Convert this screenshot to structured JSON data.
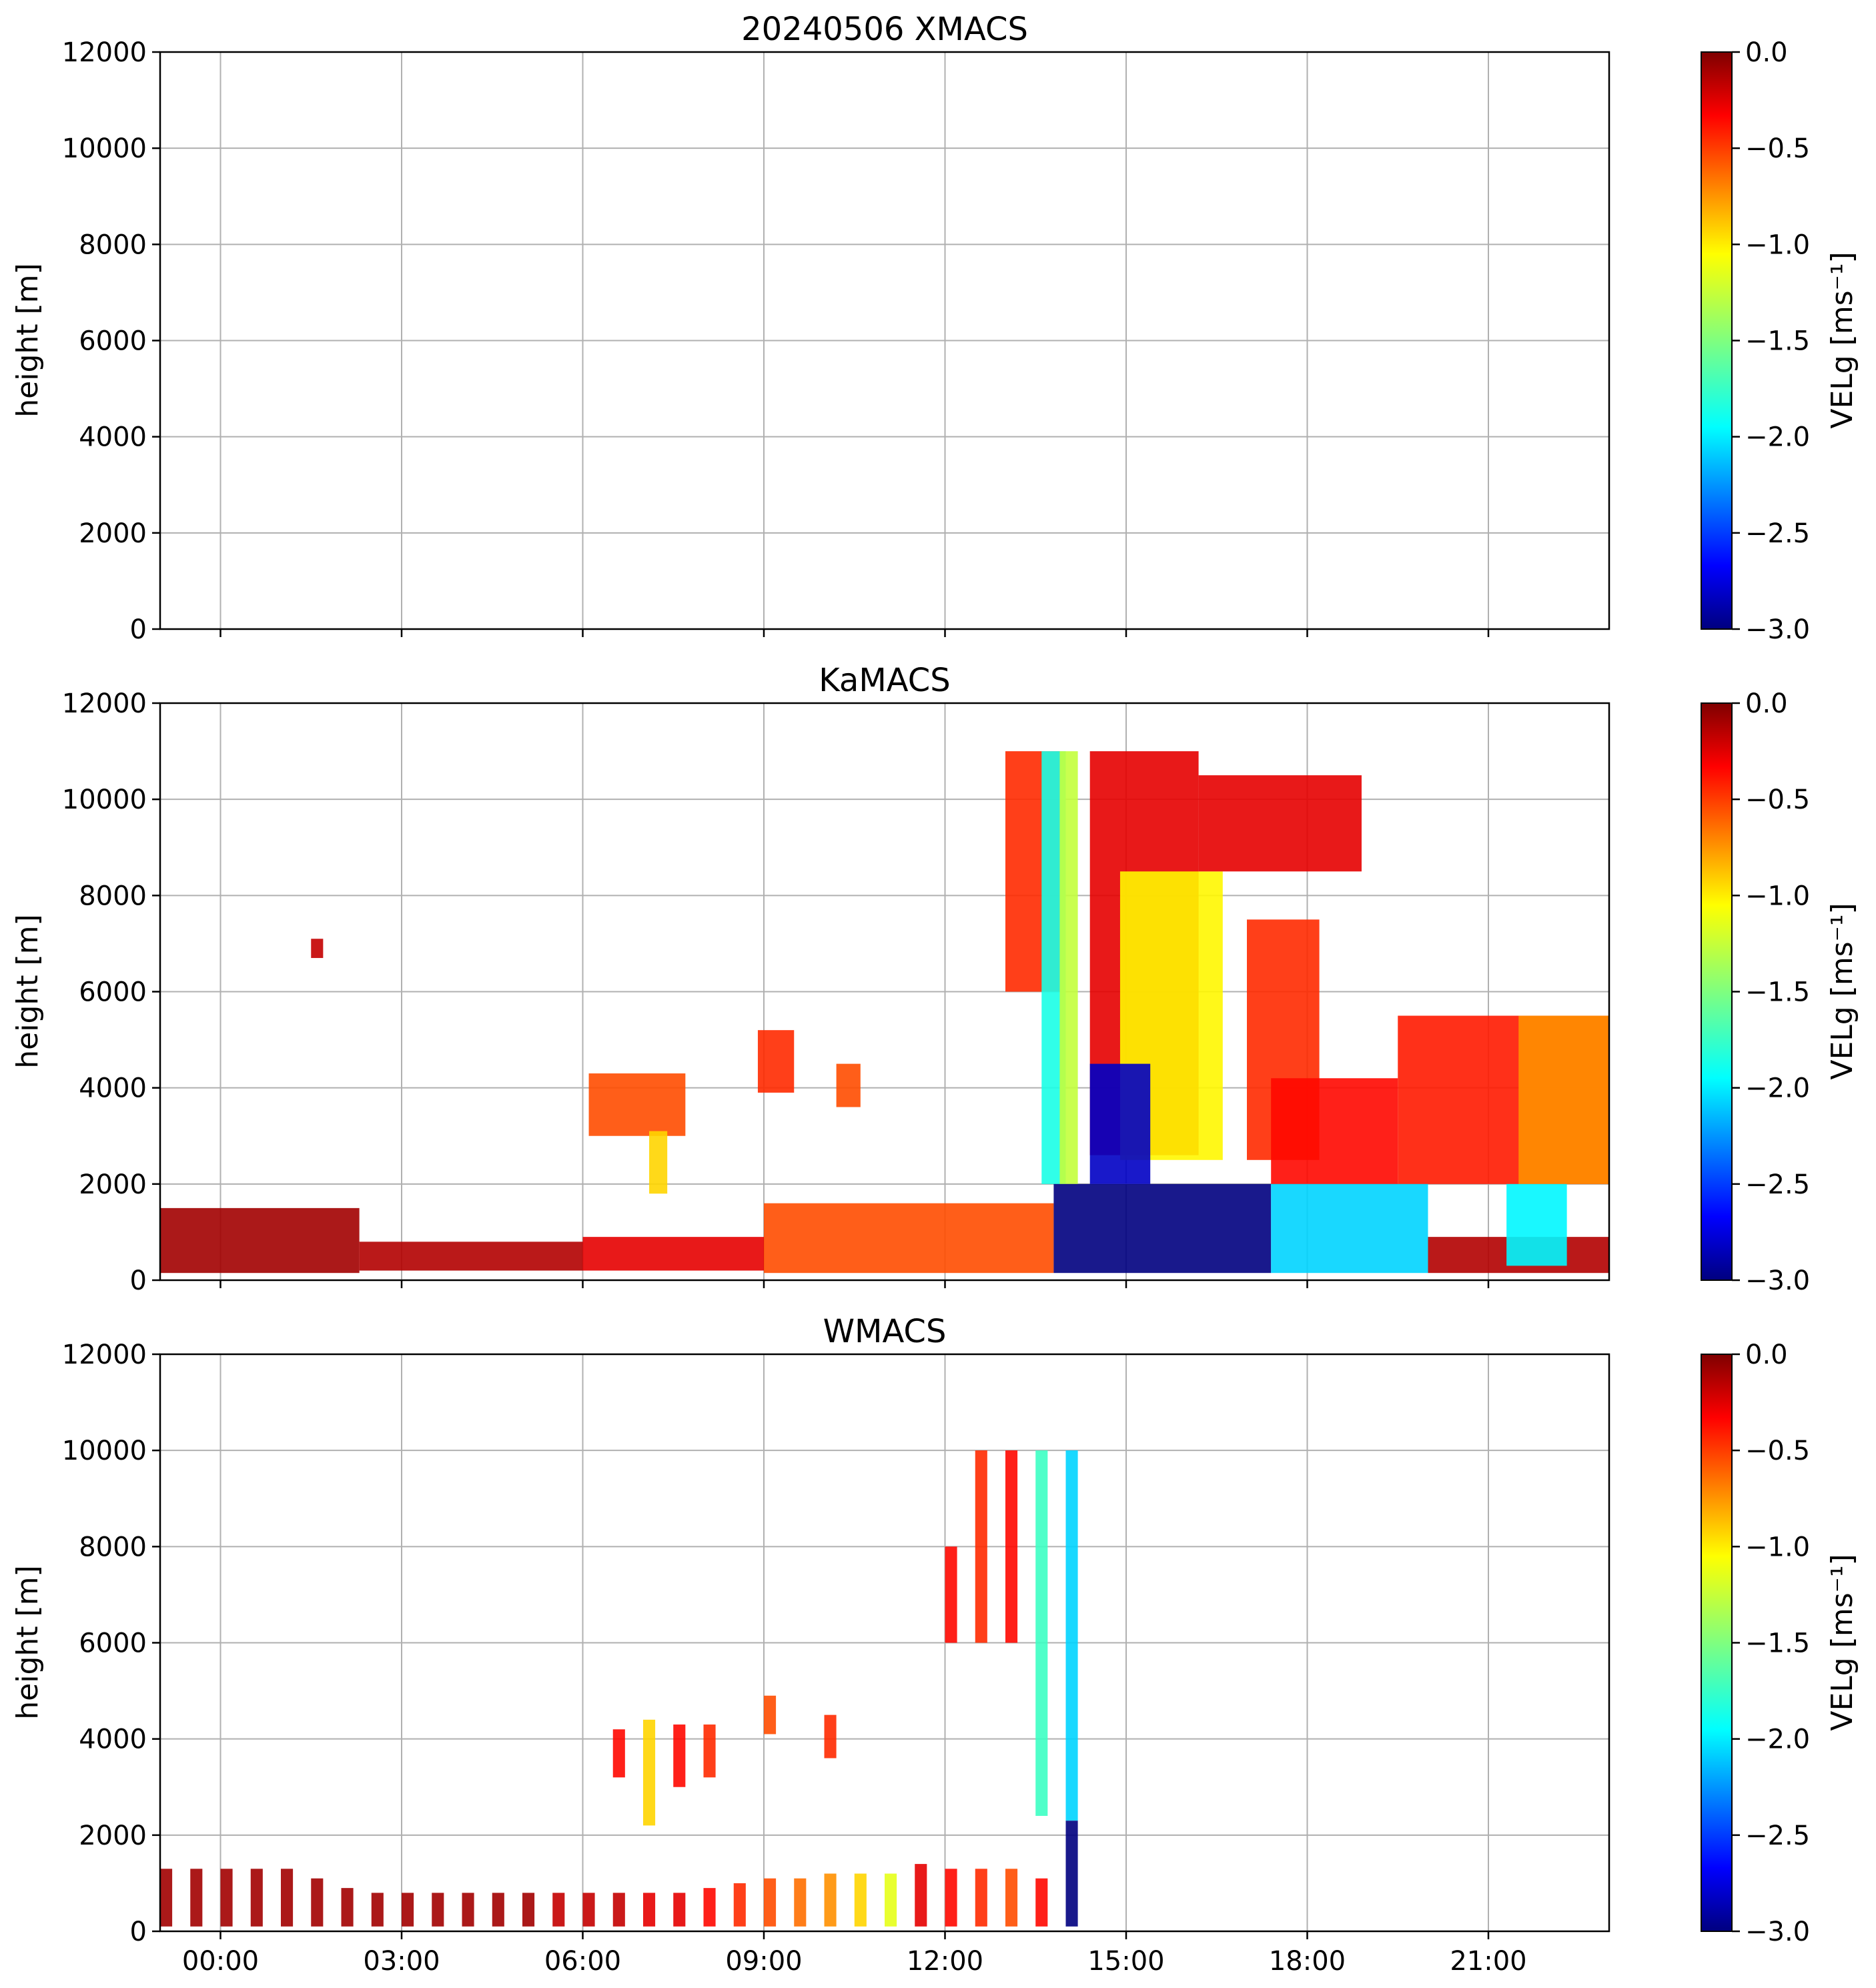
{
  "chart_data": [
    {
      "type": "heatmap",
      "title": "20240506 XMACS",
      "xlabel": "",
      "ylabel": "height [m]",
      "xlim_hours": [
        -1.0,
        23.0
      ],
      "ylim": [
        0,
        12000
      ],
      "yticks": [
        "0",
        "2000",
        "4000",
        "6000",
        "8000",
        "10000",
        "12000"
      ],
      "xticks": [],
      "grid": true,
      "colorbar": {
        "label": "VELg [ms⁻¹]",
        "range": [
          -3.0,
          0.0
        ],
        "ticks": [
          "0.0",
          "−0.5",
          "−1.0",
          "−1.5",
          "−2.0",
          "−2.5",
          "−3.0"
        ],
        "colormap": "jet"
      },
      "regions": []
    },
    {
      "type": "heatmap",
      "title": "KaMACS",
      "xlabel": "",
      "ylabel": "height [m]",
      "xlim_hours": [
        -1.0,
        23.0
      ],
      "ylim": [
        0,
        12000
      ],
      "yticks": [
        "0",
        "2000",
        "4000",
        "6000",
        "8000",
        "10000",
        "12000"
      ],
      "xticks": [],
      "grid": true,
      "colorbar": {
        "label": "VELg [ms⁻¹]",
        "range": [
          -3.0,
          0.0
        ],
        "ticks": [
          "0.0",
          "−0.5",
          "−1.0",
          "−1.5",
          "−2.0",
          "−2.5",
          "−3.0"
        ],
        "colormap": "jet"
      },
      "regions": [
        {
          "t0": -1.0,
          "t1": 2.3,
          "h0": 150,
          "h1": 1500,
          "v": -0.1
        },
        {
          "t0": 2.3,
          "t1": 6.0,
          "h0": 200,
          "h1": 800,
          "v": -0.15
        },
        {
          "t0": 6.0,
          "t1": 9.0,
          "h0": 200,
          "h1": 900,
          "v": -0.3
        },
        {
          "t0": 9.0,
          "t1": 13.8,
          "h0": 150,
          "h1": 1600,
          "v": -0.6
        },
        {
          "t0": 6.1,
          "t1": 7.7,
          "h0": 3000,
          "h1": 4300,
          "v": -0.6
        },
        {
          "t0": 7.1,
          "t1": 7.4,
          "h0": 1800,
          "h1": 3100,
          "v": -1.0
        },
        {
          "t0": 8.9,
          "t1": 9.5,
          "h0": 3900,
          "h1": 5200,
          "v": -0.5
        },
        {
          "t0": 10.2,
          "t1": 10.6,
          "h0": 3600,
          "h1": 4500,
          "v": -0.6
        },
        {
          "t0": 1.5,
          "t1": 1.7,
          "h0": 6700,
          "h1": 7100,
          "v": -0.2
        },
        {
          "t0": 13.0,
          "t1": 13.9,
          "h0": 6000,
          "h1": 11000,
          "v": -0.5
        },
        {
          "t0": 13.6,
          "t1": 14.0,
          "h0": 2000,
          "h1": 11000,
          "v": -1.8
        },
        {
          "t0": 13.9,
          "t1": 14.2,
          "h0": 2000,
          "h1": 11000,
          "v": -1.3
        },
        {
          "t0": 13.8,
          "t1": 17.4,
          "h0": 150,
          "h1": 2000,
          "v": -3.0
        },
        {
          "t0": 14.4,
          "t1": 16.2,
          "h0": 2600,
          "h1": 11000,
          "v": -0.3
        },
        {
          "t0": 14.9,
          "t1": 16.6,
          "h0": 2500,
          "h1": 8500,
          "v": -1.1
        },
        {
          "t0": 14.4,
          "t1": 15.4,
          "h0": 2000,
          "h1": 4500,
          "v": -2.8
        },
        {
          "t0": 16.2,
          "t1": 18.9,
          "h0": 8500,
          "h1": 10500,
          "v": -0.3
        },
        {
          "t0": 17.0,
          "t1": 18.2,
          "h0": 2500,
          "h1": 7500,
          "v": -0.5
        },
        {
          "t0": 17.4,
          "t1": 19.5,
          "h0": 2000,
          "h1": 4200,
          "v": -0.4
        },
        {
          "t0": 19.5,
          "t1": 23.0,
          "h0": 2000,
          "h1": 5500,
          "v": -0.45
        },
        {
          "t0": 21.5,
          "t1": 23.0,
          "h0": 2000,
          "h1": 5500,
          "v": -0.8
        },
        {
          "t0": 17.4,
          "t1": 20.0,
          "h0": 150,
          "h1": 2000,
          "v": -2.0
        },
        {
          "t0": 20.0,
          "t1": 23.0,
          "h0": 150,
          "h1": 900,
          "v": -0.15
        },
        {
          "t0": 21.3,
          "t1": 22.3,
          "h0": 300,
          "h1": 2000,
          "v": -1.9
        }
      ]
    },
    {
      "type": "heatmap",
      "title": "WMACS",
      "xlabel": "",
      "ylabel": "height [m]",
      "xlim_hours": [
        -1.0,
        23.0
      ],
      "ylim": [
        0,
        12000
      ],
      "yticks": [
        "0",
        "2000",
        "4000",
        "6000",
        "8000",
        "10000",
        "12000"
      ],
      "xticks": [
        "00:00",
        "03:00",
        "06:00",
        "09:00",
        "12:00",
        "15:00",
        "18:00",
        "21:00"
      ],
      "grid": true,
      "colorbar": {
        "label": "VELg [ms⁻¹]",
        "range": [
          -3.0,
          0.0
        ],
        "ticks": [
          "0.0",
          "−0.5",
          "−1.0",
          "−1.5",
          "−2.0",
          "−2.5",
          "−3.0"
        ],
        "colormap": "jet"
      },
      "regions": [
        {
          "t0": -1.0,
          "t1": -0.8,
          "h0": 100,
          "h1": 1300,
          "v": -0.1
        },
        {
          "t0": -0.5,
          "t1": -0.3,
          "h0": 100,
          "h1": 1300,
          "v": -0.1
        },
        {
          "t0": 0.0,
          "t1": 0.2,
          "h0": 100,
          "h1": 1300,
          "v": -0.1
        },
        {
          "t0": 0.5,
          "t1": 0.7,
          "h0": 100,
          "h1": 1300,
          "v": -0.1
        },
        {
          "t0": 1.0,
          "t1": 1.2,
          "h0": 100,
          "h1": 1300,
          "v": -0.1
        },
        {
          "t0": 1.5,
          "t1": 1.7,
          "h0": 100,
          "h1": 1100,
          "v": -0.1
        },
        {
          "t0": 2.0,
          "t1": 2.2,
          "h0": 100,
          "h1": 900,
          "v": -0.1
        },
        {
          "t0": 2.5,
          "t1": 2.7,
          "h0": 100,
          "h1": 800,
          "v": -0.1
        },
        {
          "t0": 3.0,
          "t1": 3.2,
          "h0": 100,
          "h1": 800,
          "v": -0.1
        },
        {
          "t0": 3.5,
          "t1": 3.7,
          "h0": 100,
          "h1": 800,
          "v": -0.1
        },
        {
          "t0": 4.0,
          "t1": 4.2,
          "h0": 100,
          "h1": 800,
          "v": -0.1
        },
        {
          "t0": 4.5,
          "t1": 4.7,
          "h0": 100,
          "h1": 800,
          "v": -0.1
        },
        {
          "t0": 5.0,
          "t1": 5.2,
          "h0": 100,
          "h1": 800,
          "v": -0.1
        },
        {
          "t0": 5.5,
          "t1": 5.7,
          "h0": 100,
          "h1": 800,
          "v": -0.2
        },
        {
          "t0": 6.0,
          "t1": 6.2,
          "h0": 100,
          "h1": 800,
          "v": -0.2
        },
        {
          "t0": 6.5,
          "t1": 6.7,
          "h0": 100,
          "h1": 800,
          "v": -0.2
        },
        {
          "t0": 7.0,
          "t1": 7.2,
          "h0": 100,
          "h1": 800,
          "v": -0.3
        },
        {
          "t0": 7.5,
          "t1": 7.7,
          "h0": 100,
          "h1": 800,
          "v": -0.3
        },
        {
          "t0": 8.0,
          "t1": 8.2,
          "h0": 100,
          "h1": 900,
          "v": -0.4
        },
        {
          "t0": 8.5,
          "t1": 8.7,
          "h0": 100,
          "h1": 1000,
          "v": -0.5
        },
        {
          "t0": 9.0,
          "t1": 9.2,
          "h0": 100,
          "h1": 1100,
          "v": -0.6
        },
        {
          "t0": 9.5,
          "t1": 9.7,
          "h0": 100,
          "h1": 1100,
          "v": -0.7
        },
        {
          "t0": 10.0,
          "t1": 10.2,
          "h0": 100,
          "h1": 1200,
          "v": -0.8
        },
        {
          "t0": 10.5,
          "t1": 10.7,
          "h0": 100,
          "h1": 1200,
          "v": -1.0
        },
        {
          "t0": 11.0,
          "t1": 11.2,
          "h0": 100,
          "h1": 1200,
          "v": -1.2
        },
        {
          "t0": 11.5,
          "t1": 11.7,
          "h0": 100,
          "h1": 1400,
          "v": -0.3
        },
        {
          "t0": 12.0,
          "t1": 12.2,
          "h0": 100,
          "h1": 1300,
          "v": -0.4
        },
        {
          "t0": 12.5,
          "t1": 12.7,
          "h0": 100,
          "h1": 1300,
          "v": -0.5
        },
        {
          "t0": 13.0,
          "t1": 13.2,
          "h0": 100,
          "h1": 1300,
          "v": -0.6
        },
        {
          "t0": 13.5,
          "t1": 13.7,
          "h0": 100,
          "h1": 1100,
          "v": -0.4
        },
        {
          "t0": 6.5,
          "t1": 6.7,
          "h0": 3200,
          "h1": 4200,
          "v": -0.4
        },
        {
          "t0": 7.0,
          "t1": 7.2,
          "h0": 2200,
          "h1": 4400,
          "v": -1.0
        },
        {
          "t0": 7.5,
          "t1": 7.7,
          "h0": 3000,
          "h1": 4300,
          "v": -0.4
        },
        {
          "t0": 8.0,
          "t1": 8.2,
          "h0": 3200,
          "h1": 4300,
          "v": -0.5
        },
        {
          "t0": 9.0,
          "t1": 9.2,
          "h0": 4100,
          "h1": 4900,
          "v": -0.6
        },
        {
          "t0": 10.0,
          "t1": 10.2,
          "h0": 3600,
          "h1": 4500,
          "v": -0.5
        },
        {
          "t0": 12.0,
          "t1": 12.2,
          "h0": 6000,
          "h1": 8000,
          "v": -0.4
        },
        {
          "t0": 12.5,
          "t1": 12.7,
          "h0": 6000,
          "h1": 10000,
          "v": -0.5
        },
        {
          "t0": 13.0,
          "t1": 13.2,
          "h0": 6000,
          "h1": 10000,
          "v": -0.4
        },
        {
          "t0": 13.5,
          "t1": 13.7,
          "h0": 2400,
          "h1": 10000,
          "v": -1.7
        },
        {
          "t0": 14.0,
          "t1": 14.2,
          "h0": 2300,
          "h1": 10000,
          "v": -2.0
        },
        {
          "t0": 14.0,
          "t1": 14.2,
          "h0": 100,
          "h1": 2300,
          "v": -3.0
        }
      ]
    }
  ]
}
